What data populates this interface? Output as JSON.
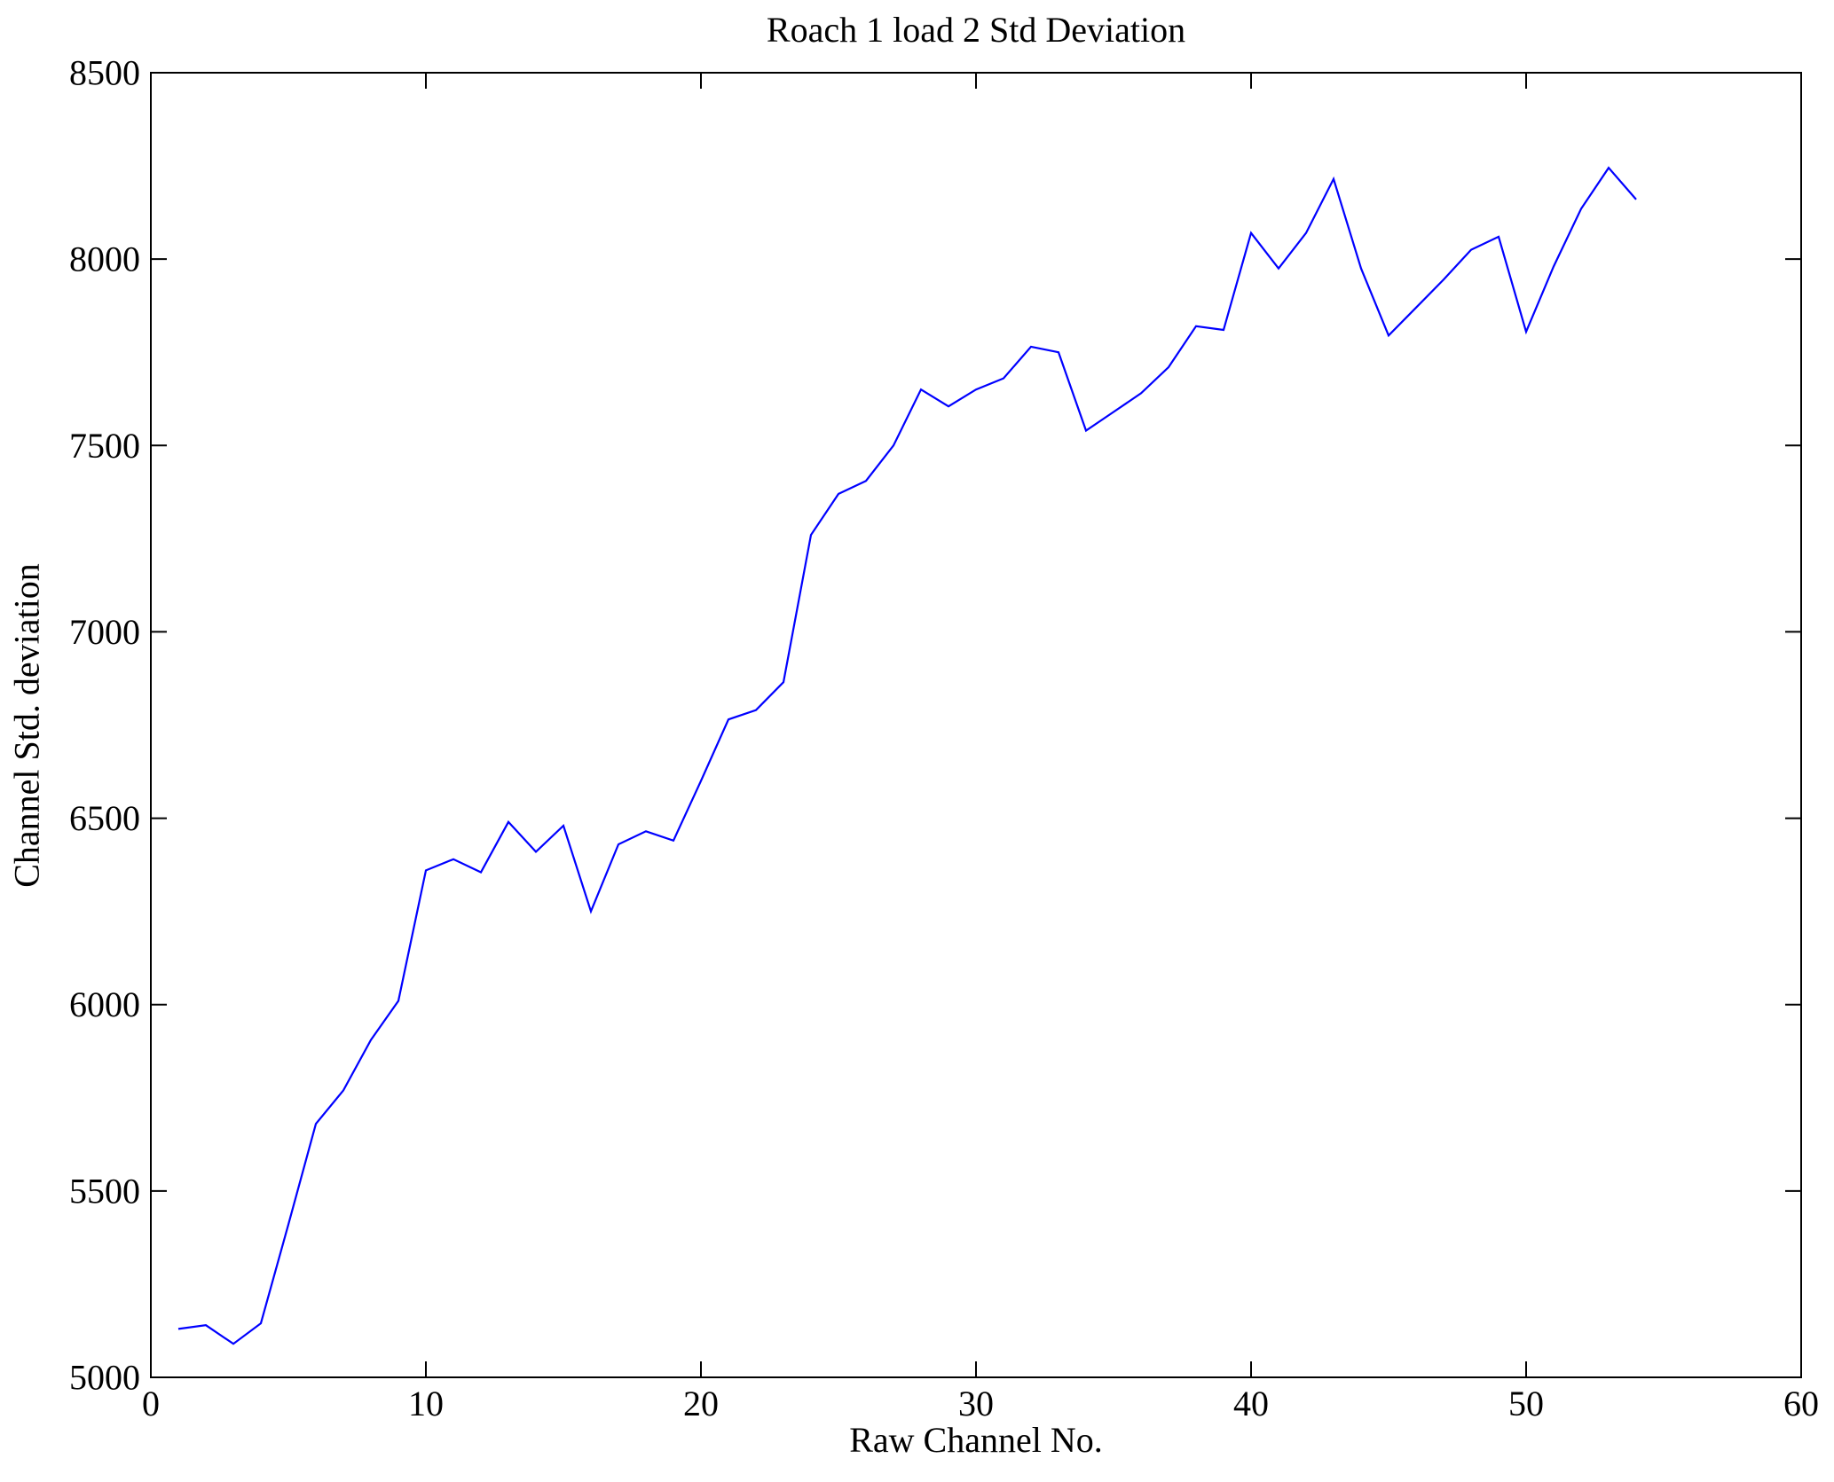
{
  "figure": {
    "background_color": "#ffffff"
  },
  "chart_data": {
    "type": "line",
    "title": "Roach 1 load 2 Std Deviation",
    "xlabel": "Raw Channel No.",
    "ylabel": "Channel Std. deviation",
    "xlim": [
      0,
      60
    ],
    "ylim": [
      5000,
      8500
    ],
    "xticks": [
      0,
      10,
      20,
      30,
      40,
      50,
      60
    ],
    "yticks": [
      5000,
      5500,
      6000,
      6500,
      7000,
      7500,
      8000,
      8500
    ],
    "grid": false,
    "legend_position": "none",
    "line_color": "#0000ff",
    "axis_color": "#000000",
    "x": [
      1,
      2,
      3,
      4,
      5,
      6,
      7,
      8,
      9,
      10,
      11,
      12,
      13,
      14,
      15,
      16,
      17,
      18,
      19,
      20,
      21,
      22,
      23,
      24,
      25,
      26,
      27,
      28,
      29,
      30,
      31,
      32,
      33,
      34,
      35,
      36,
      37,
      38,
      39,
      40,
      41,
      42,
      43,
      44,
      45,
      46,
      47,
      48,
      49,
      50,
      51,
      52,
      53,
      54
    ],
    "y": [
      5130,
      5140,
      5090,
      5145,
      5410,
      5680,
      5770,
      5905,
      6010,
      6360,
      6390,
      6355,
      6490,
      6410,
      6480,
      6250,
      6430,
      6465,
      6440,
      6600,
      6765,
      6790,
      6865,
      7260,
      7370,
      7405,
      7500,
      7650,
      7605,
      7650,
      7680,
      7765,
      7750,
      7540,
      7590,
      7640,
      7710,
      7820,
      7810,
      8070,
      7975,
      8070,
      8215,
      7975,
      7795,
      7870,
      7945,
      8025,
      8060,
      7805,
      7980,
      8135,
      8245,
      8160
    ]
  }
}
